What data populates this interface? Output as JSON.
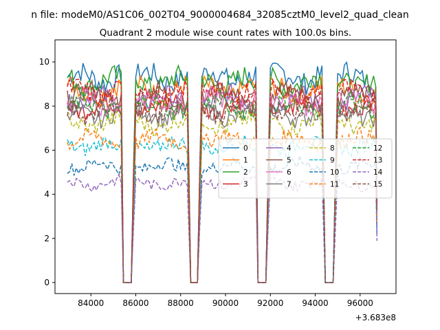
{
  "chart_data": {
    "type": "line",
    "suptitle": "n file: modeM0/AS1C06_002T04_9000004684_32085cztM0_level2_quad_clean",
    "title": "Quadrant 2 module wise count rates with 100.0s bins.",
    "xlabel": "",
    "ylabel": "",
    "x_offset_label": "+3.683e8",
    "xlim": [
      82400,
      97600
    ],
    "ylim": [
      -0.5,
      11.0
    ],
    "x_ticks": [
      84000,
      86000,
      88000,
      90000,
      92000,
      94000,
      96000
    ],
    "x_tick_labels": [
      "84000",
      "86000",
      "88000",
      "90000",
      "92000",
      "94000",
      "96000"
    ],
    "y_ticks": [
      0,
      2,
      4,
      6,
      8,
      10
    ],
    "y_tick_labels": [
      "0",
      "2",
      "4",
      "6",
      "8",
      "10"
    ],
    "grid": false,
    "legend_position": "center-right",
    "legend_columns": 4,
    "time_windows": [
      [
        82950,
        85350
      ],
      [
        85900,
        88350
      ],
      [
        88850,
        91350
      ],
      [
        91900,
        94350
      ],
      [
        94900,
        96750
      ]
    ],
    "gap_ends": [
      [
        85350,
        85450
      ],
      [
        85800,
        85900
      ],
      [
        88350,
        88450
      ],
      [
        88750,
        88850
      ],
      [
        91350,
        91450
      ],
      [
        91800,
        91900
      ],
      [
        94350,
        94450
      ],
      [
        94800,
        94900
      ],
      [
        96750,
        96750
      ]
    ],
    "series": [
      {
        "name": "0",
        "level": 9.3,
        "color": "#1f77b4",
        "dash": "solid"
      },
      {
        "name": "1",
        "level": 8.7,
        "color": "#ff7f0e",
        "dash": "solid"
      },
      {
        "name": "2",
        "level": 9.1,
        "color": "#2ca02c",
        "dash": "solid"
      },
      {
        "name": "3",
        "level": 8.0,
        "color": "#d62728",
        "dash": "solid"
      },
      {
        "name": "4",
        "level": 8.3,
        "color": "#9467bd",
        "dash": "solid"
      },
      {
        "name": "5",
        "level": 8.5,
        "color": "#8c564b",
        "dash": "solid"
      },
      {
        "name": "6",
        "level": 8.2,
        "color": "#e377c2",
        "dash": "solid"
      },
      {
        "name": "7",
        "level": 7.6,
        "color": "#7f7f7f",
        "dash": "solid"
      },
      {
        "name": "8",
        "level": 7.2,
        "color": "#bcbd22",
        "dash": "dashed"
      },
      {
        "name": "9",
        "level": 6.2,
        "color": "#17becf",
        "dash": "dashed"
      },
      {
        "name": "10",
        "level": 5.3,
        "color": "#1f77b4",
        "dash": "dashed"
      },
      {
        "name": "11",
        "level": 6.5,
        "color": "#ff7f0e",
        "dash": "dashed"
      },
      {
        "name": "12",
        "level": 8.0,
        "color": "#2ca02c",
        "dash": "dashed"
      },
      {
        "name": "13",
        "level": 8.6,
        "color": "#d62728",
        "dash": "dashed"
      },
      {
        "name": "14",
        "level": 4.5,
        "color": "#9467bd",
        "dash": "dashed"
      },
      {
        "name": "15",
        "level": 7.8,
        "color": "#8c564b",
        "dash": "dashed"
      }
    ]
  }
}
